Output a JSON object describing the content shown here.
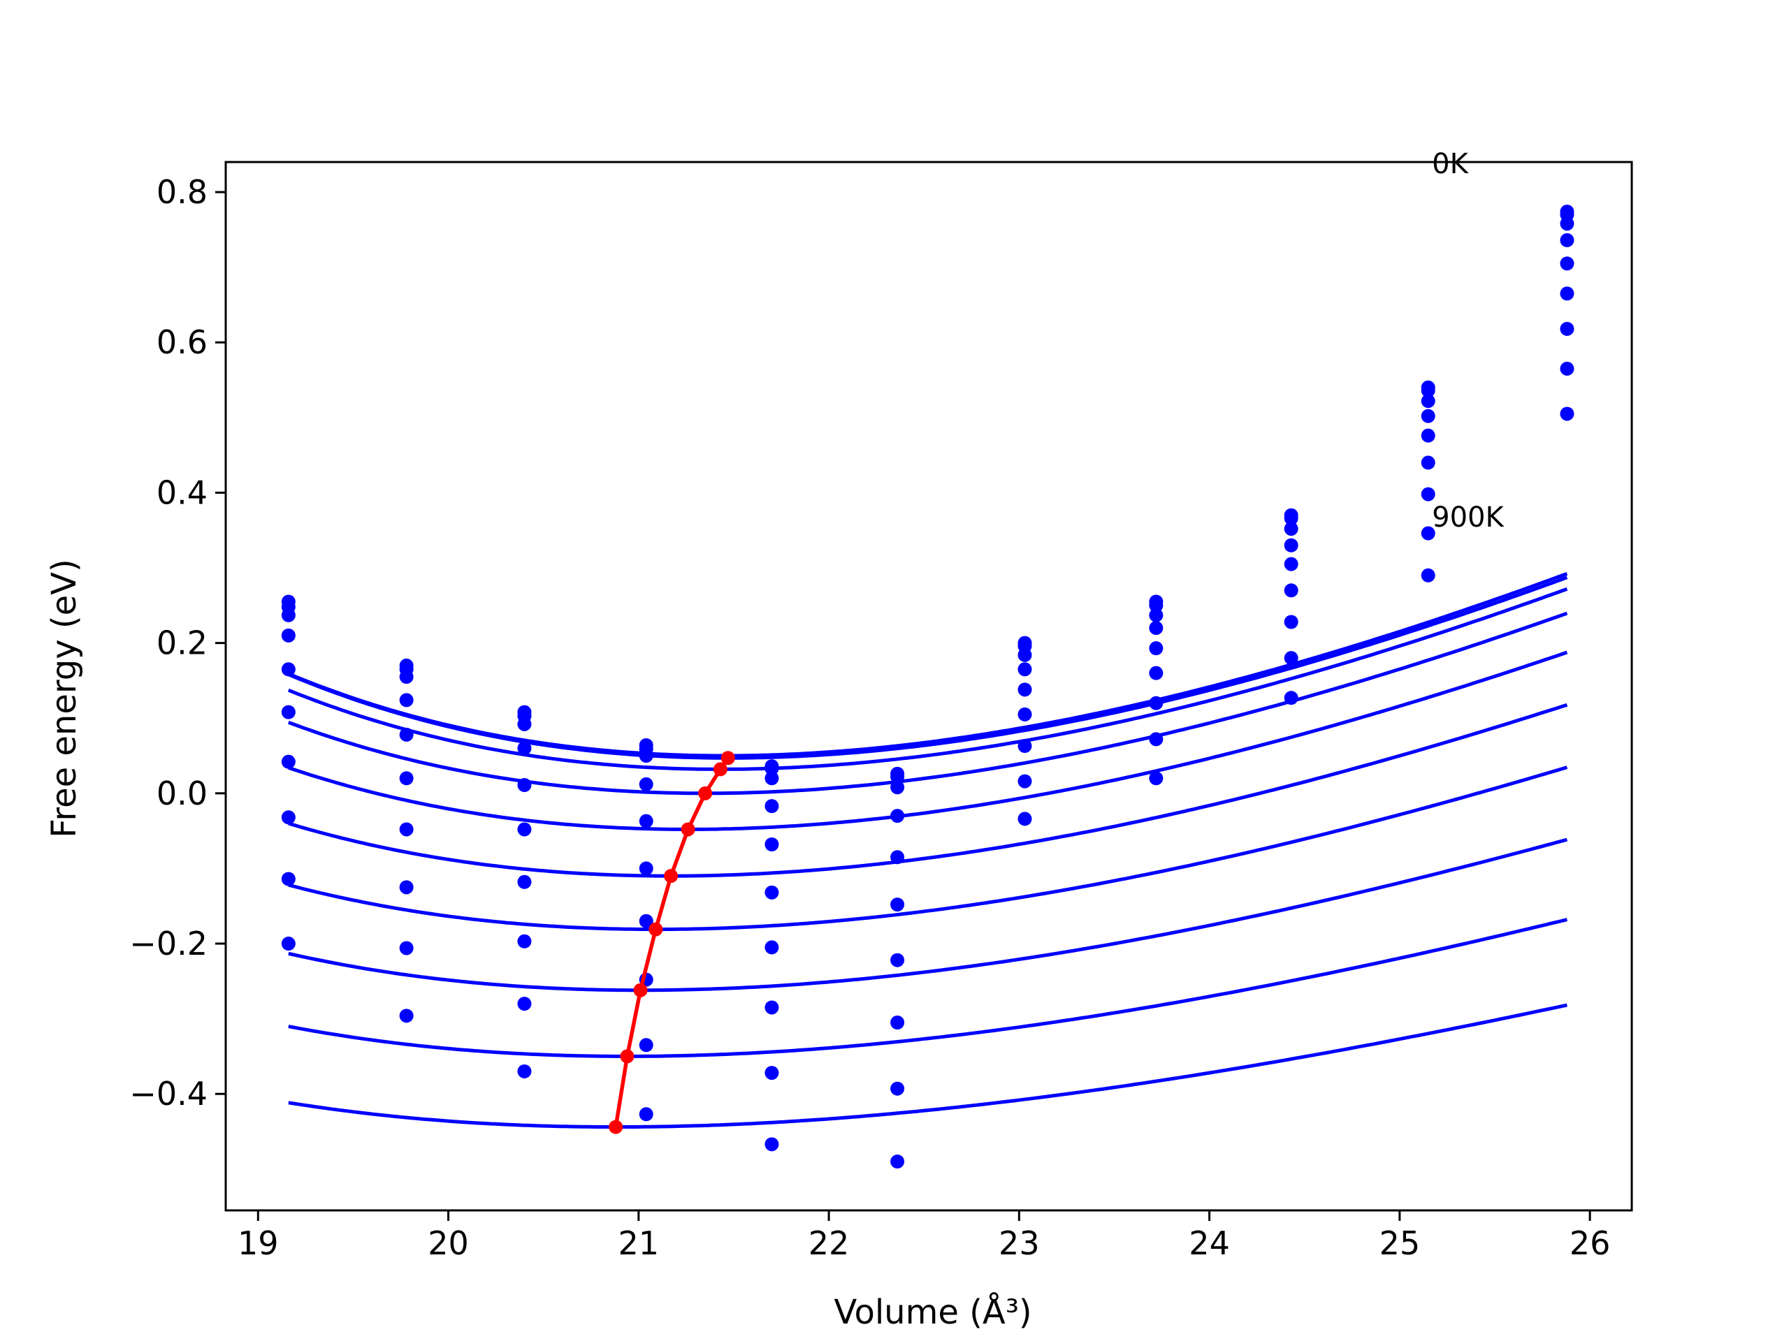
{
  "chart_data": {
    "type": "line",
    "xlabel": "Volume (Å³)",
    "ylabel": "Free energy (eV)",
    "xlim": [
      18.83,
      26.22
    ],
    "ylim": [
      -0.555,
      0.84
    ],
    "xticks": [
      19,
      20,
      21,
      22,
      23,
      24,
      25,
      26
    ],
    "yticks": [
      -0.4,
      -0.2,
      0.0,
      0.2,
      0.4,
      0.6,
      0.8
    ],
    "ytick_labels": [
      "−0.4",
      "−0.2",
      "0.0",
      "0.2",
      "0.4",
      "0.6",
      "0.8"
    ],
    "grid": false,
    "annotations": [
      {
        "text": "0K",
        "x": 25.17,
        "y": 0.825
      },
      {
        "text": "900K",
        "x": 25.17,
        "y": 0.355
      }
    ],
    "volumes": [
      19.16,
      19.78,
      20.4,
      21.04,
      21.7,
      22.36,
      23.03,
      23.72,
      24.43,
      25.15,
      25.88
    ],
    "series": [
      {
        "values": [
          0.255,
          0.17,
          0.108,
          0.064,
          0.036,
          0.026,
          0.2,
          0.255,
          0.37,
          0.54,
          0.774
        ],
        "fit": {
          "E0": 0.05,
          "V0": 21.45,
          "B": 0.734,
          "Bp": 4.2
        }
      },
      {
        "values": [
          0.248,
          0.165,
          0.103,
          0.059,
          0.033,
          0.022,
          0.196,
          0.25,
          0.366,
          0.536,
          0.77
        ],
        "fit": {
          "E0": 0.047,
          "V0": 21.47,
          "B": 0.734,
          "Bp": 4.2
        }
      },
      {
        "values": [
          0.237,
          0.155,
          0.092,
          0.05,
          0.02,
          0.008,
          0.184,
          0.237,
          0.352,
          0.522,
          0.758
        ],
        "fit": {
          "E0": 0.032,
          "V0": 21.43,
          "B": 0.7208,
          "Bp": 4.2
        }
      },
      {
        "values": [
          0.21,
          0.124,
          0.06,
          0.012,
          -0.017,
          -0.03,
          0.165,
          0.22,
          0.33,
          0.502,
          0.736
        ],
        "fit": {
          "E0": 0.0,
          "V0": 21.35,
          "B": 0.6965,
          "Bp": 4.2
        }
      },
      {
        "values": [
          0.165,
          0.078,
          0.011,
          -0.037,
          -0.068,
          -0.085,
          0.138,
          0.193,
          0.305,
          0.476,
          0.705
        ],
        "fit": {
          "E0": -0.048,
          "V0": 21.26,
          "B": 0.6606,
          "Bp": 4.2
        }
      },
      {
        "values": [
          0.108,
          0.02,
          -0.048,
          -0.1,
          -0.132,
          -0.148,
          0.105,
          0.16,
          0.27,
          0.44,
          0.665
        ],
        "fit": {
          "E0": -0.11,
          "V0": 21.17,
          "B": 0.6163,
          "Bp": 4.2
        }
      },
      {
        "values": [
          0.042,
          -0.048,
          -0.118,
          -0.17,
          -0.205,
          -0.222,
          0.063,
          0.12,
          0.228,
          0.398,
          0.618
        ],
        "fit": {
          "E0": -0.181,
          "V0": 21.09,
          "B": 0.5657,
          "Bp": 4.2
        }
      },
      {
        "values": [
          -0.032,
          -0.125,
          -0.197,
          -0.248,
          -0.285,
          -0.305,
          0.016,
          0.072,
          0.18,
          0.346,
          0.565
        ],
        "fit": {
          "E0": -0.262,
          "V0": 21.01,
          "B": 0.5102,
          "Bp": 4.2
        }
      },
      {
        "values": [
          -0.114,
          -0.206,
          -0.28,
          -0.335,
          -0.372,
          -0.393,
          -0.034,
          0.02,
          0.127,
          0.29,
          0.505
        ],
        "fit": {
          "E0": -0.35,
          "V0": 20.94,
          "B": 0.4514,
          "Bp": 4.2
        }
      },
      {
        "values": [
          -0.2,
          -0.296,
          -0.37,
          -0.427,
          -0.467,
          -0.49,
          null,
          null,
          null,
          null,
          null
        ],
        "fit": {
          "E0": -0.444,
          "V0": 20.88,
          "B": 0.3935,
          "Bp": 4.2
        }
      }
    ],
    "minima_path": {
      "x": [
        21.47,
        21.43,
        21.35,
        21.26,
        21.17,
        21.09,
        21.01,
        20.94,
        20.88
      ],
      "y": [
        0.047,
        0.032,
        0.0,
        -0.048,
        -0.11,
        -0.181,
        -0.262,
        -0.35,
        -0.444
      ]
    },
    "colors": {
      "data": "#0000ff",
      "path": "#ff0000",
      "axes": "#000000"
    }
  }
}
